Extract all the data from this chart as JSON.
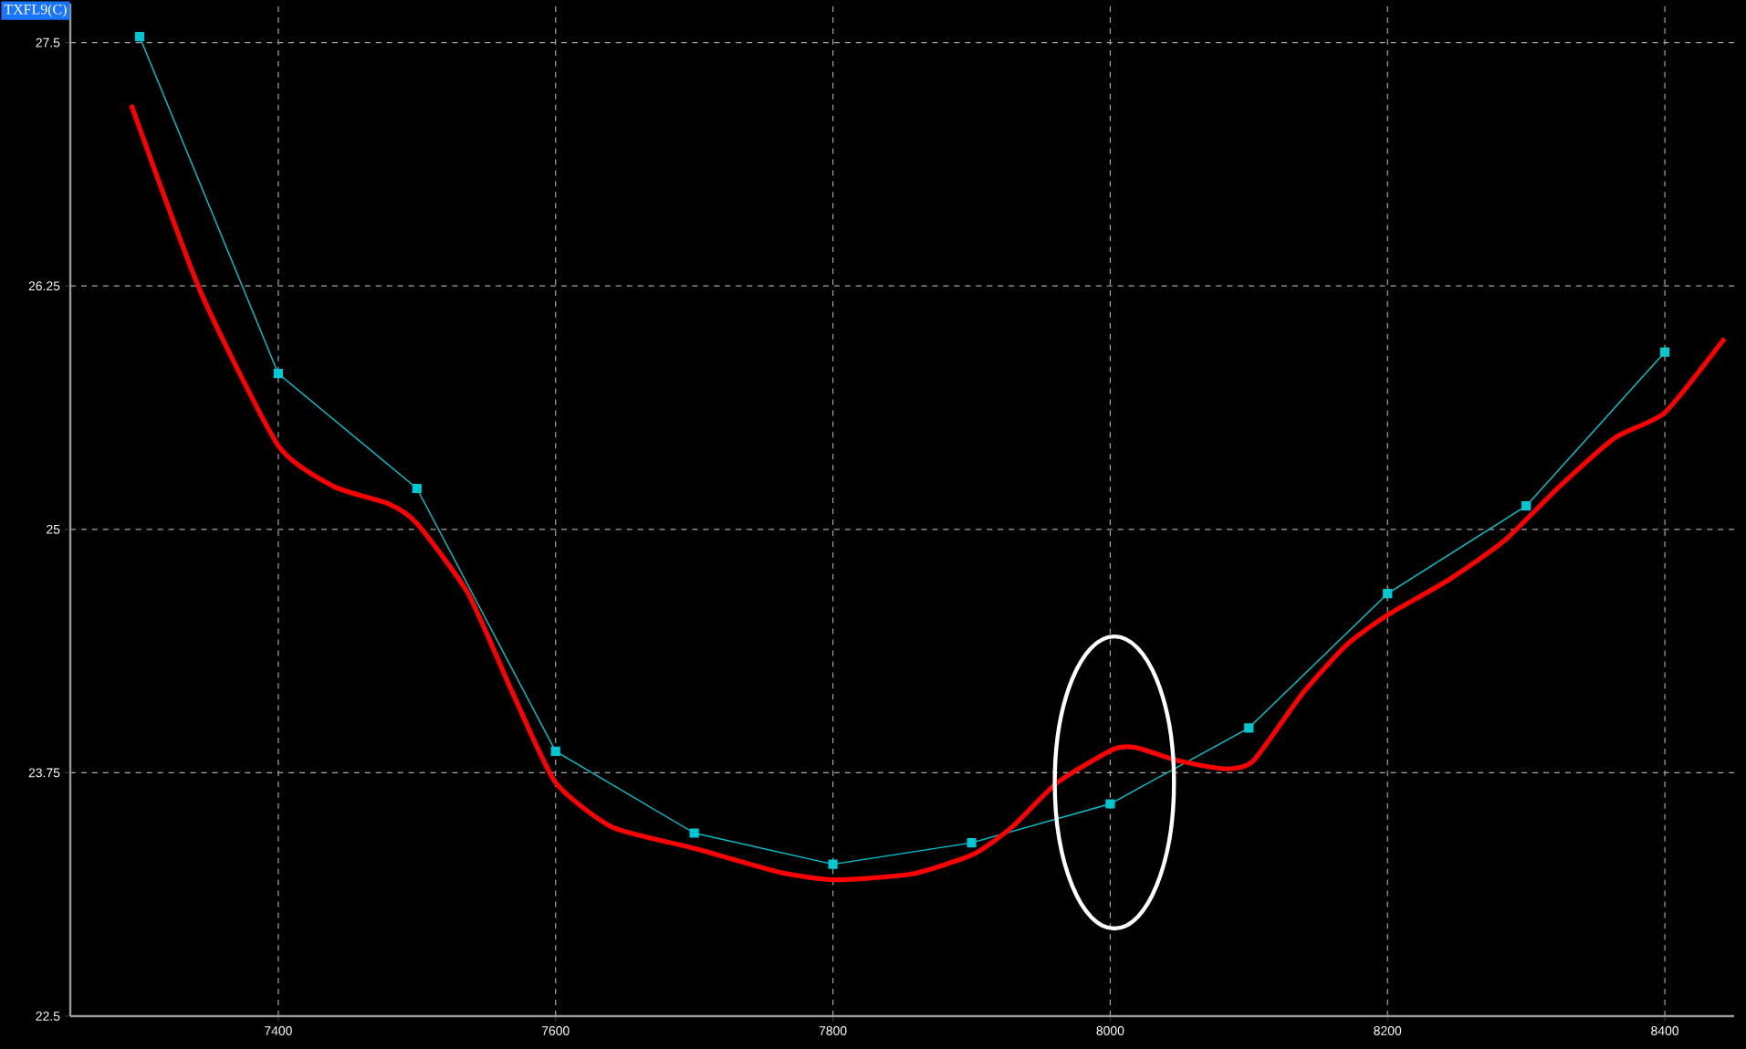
{
  "chart_data": {
    "type": "line",
    "title": "TXFL9(C)",
    "xlim": [
      7250,
      8450
    ],
    "ylim": [
      22.5,
      27.7
    ],
    "xticks": [
      7400,
      7600,
      7800,
      8000,
      8200,
      8400
    ],
    "yticks": [
      22.5,
      23.75,
      25,
      26.25,
      27.5
    ],
    "grid": true,
    "series": [
      {
        "color": "#00c8d2",
        "marker": "square",
        "x": [
          7300,
          7400,
          7500,
          7600,
          7700,
          7800,
          7900,
          8000,
          8100,
          8200,
          8300,
          8400
        ],
        "values": [
          27.53,
          25.8,
          25.21,
          23.86,
          23.44,
          23.28,
          23.39,
          23.59,
          23.98,
          24.67,
          25.12,
          25.91
        ]
      },
      {
        "color": "#ff0000",
        "marker": "none",
        "x": [
          7294,
          7344,
          7400,
          7440,
          7480,
          7500,
          7537,
          7569,
          7600,
          7641,
          7701,
          7761,
          7801,
          7857,
          7901,
          7929,
          7962,
          8002,
          8018,
          8050,
          8083,
          8103,
          8139,
          8171,
          8200,
          8244,
          8284,
          8324,
          8364,
          8400,
          8443
        ],
        "values": [
          27.18,
          26.22,
          25.43,
          25.22,
          25.13,
          25.03,
          24.67,
          24.16,
          23.7,
          23.47,
          23.36,
          23.24,
          23.2,
          23.23,
          23.33,
          23.47,
          23.7,
          23.87,
          23.88,
          23.81,
          23.77,
          23.81,
          24.16,
          24.41,
          24.56,
          24.74,
          24.94,
          25.22,
          25.47,
          25.6,
          25.98
        ]
      }
    ]
  }
}
